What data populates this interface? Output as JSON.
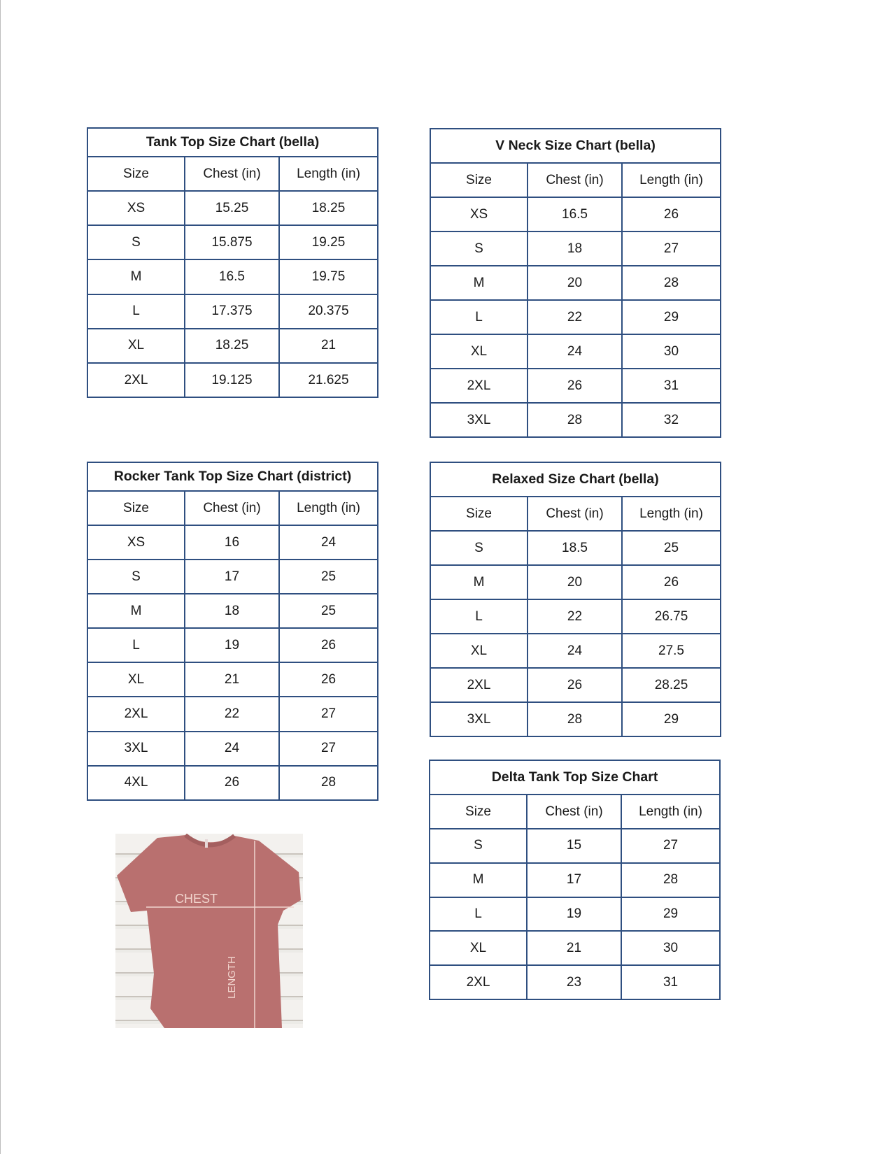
{
  "tables": [
    {
      "title": "Tank Top Size Chart  (bella)",
      "headers": [
        "Size",
        "Chest (in)",
        "Length (in)"
      ],
      "rows": [
        [
          "XS",
          "15.25",
          "18.25"
        ],
        [
          "S",
          "15.875",
          "19.25"
        ],
        [
          "M",
          "16.5",
          "19.75"
        ],
        [
          "L",
          "17.375",
          "20.375"
        ],
        [
          "XL",
          "18.25",
          "21"
        ],
        [
          "2XL",
          "19.125",
          "21.625"
        ]
      ]
    },
    {
      "title": "V Neck Size Chart  (bella)",
      "headers": [
        "Size",
        "Chest (in)",
        "Length (in)"
      ],
      "rows": [
        [
          "XS",
          "16.5",
          "26"
        ],
        [
          "S",
          "18",
          "27"
        ],
        [
          "M",
          "20",
          "28"
        ],
        [
          "L",
          "22",
          "29"
        ],
        [
          "XL",
          "24",
          "30"
        ],
        [
          "2XL",
          "26",
          "31"
        ],
        [
          "3XL",
          "28",
          "32"
        ]
      ]
    },
    {
      "title": "Rocker Tank Top Size Chart (district)",
      "headers": [
        "Size",
        "Chest (in)",
        "Length (in)"
      ],
      "rows": [
        [
          "XS",
          "16",
          "24"
        ],
        [
          "S",
          "17",
          "25"
        ],
        [
          "M",
          "18",
          "25"
        ],
        [
          "L",
          "19",
          "26"
        ],
        [
          "XL",
          "21",
          "26"
        ],
        [
          "2XL",
          "22",
          "27"
        ],
        [
          "3XL",
          "24",
          "27"
        ],
        [
          "4XL",
          "26",
          "28"
        ]
      ]
    },
    {
      "title": "Relaxed Size Chart (bella)",
      "headers": [
        "Size",
        "Chest (in)",
        "Length (in)"
      ],
      "rows": [
        [
          "S",
          "18.5",
          "25"
        ],
        [
          "M",
          "20",
          "26"
        ],
        [
          "L",
          "22",
          "26.75"
        ],
        [
          "XL",
          "24",
          "27.5"
        ],
        [
          "2XL",
          "26",
          "28.25"
        ],
        [
          "3XL",
          "28",
          "29"
        ]
      ]
    },
    {
      "title": "Delta Tank Top Size Chart",
      "headers": [
        "Size",
        "Chest (in)",
        "Length (in)"
      ],
      "rows": [
        [
          "S",
          "15",
          "27"
        ],
        [
          "M",
          "17",
          "28"
        ],
        [
          "L",
          "19",
          "29"
        ],
        [
          "XL",
          "21",
          "30"
        ],
        [
          "2XL",
          "23",
          "31"
        ]
      ]
    }
  ],
  "image": {
    "chest_label": "CHEST",
    "length_label": "LENGTH"
  },
  "colors": {
    "border": "#2f4f80",
    "shirt": "#b9706f"
  }
}
